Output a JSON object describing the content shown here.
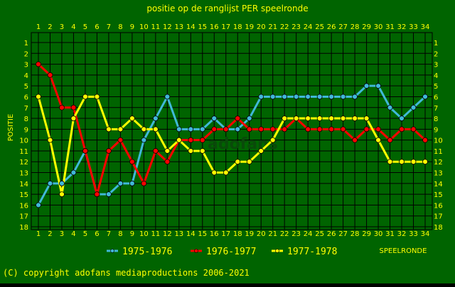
{
  "chart_data": {
    "type": "line",
    "title": "positie op de ranglijst PER speelronde",
    "ylabel": "POSITIE",
    "xlabel": "SPEELRONDE",
    "x": [
      1,
      2,
      3,
      4,
      5,
      6,
      7,
      8,
      9,
      10,
      11,
      12,
      13,
      14,
      15,
      16,
      17,
      18,
      19,
      20,
      21,
      22,
      23,
      24,
      25,
      26,
      27,
      28,
      29,
      30,
      31,
      32,
      33,
      34
    ],
    "y_ticks": [
      1,
      2,
      3,
      4,
      5,
      6,
      7,
      8,
      9,
      10,
      11,
      12,
      13,
      14,
      15,
      16,
      17,
      18
    ],
    "ylim": [
      1,
      18
    ],
    "y_inverted": true,
    "grid": true,
    "legend_position": "bottom",
    "watermark": "adofans",
    "series": [
      {
        "name": "1975-1976",
        "color": "#40b8d8",
        "values": [
          16,
          14,
          14,
          13,
          11,
          15,
          15,
          14,
          14,
          10,
          8,
          6,
          9,
          9,
          9,
          8,
          9,
          9,
          8,
          6,
          6,
          6,
          6,
          6,
          6,
          6,
          6,
          6,
          5,
          5,
          7,
          8,
          7,
          6
        ]
      },
      {
        "name": "1976-1977",
        "color": "#ff0000",
        "values": [
          3,
          4,
          7,
          7,
          11,
          15,
          11,
          10,
          12,
          14,
          11,
          12,
          10,
          10,
          10,
          9,
          9,
          8,
          9,
          9,
          9,
          9,
          8,
          9,
          9,
          9,
          9,
          10,
          9,
          9,
          10,
          9,
          9,
          10
        ]
      },
      {
        "name": "1977-1978",
        "color": "#ffff00",
        "values": [
          6,
          10,
          15,
          8,
          6,
          6,
          9,
          9,
          8,
          9,
          9,
          11,
          10,
          11,
          11,
          13,
          13,
          12,
          12,
          11,
          10,
          8,
          8,
          8,
          8,
          8,
          8,
          8,
          8,
          10,
          12,
          12,
          12,
          12
        ]
      }
    ]
  },
  "footer": {
    "copyright": "(C) copyright adofans mediaproductions 2006-2021"
  }
}
